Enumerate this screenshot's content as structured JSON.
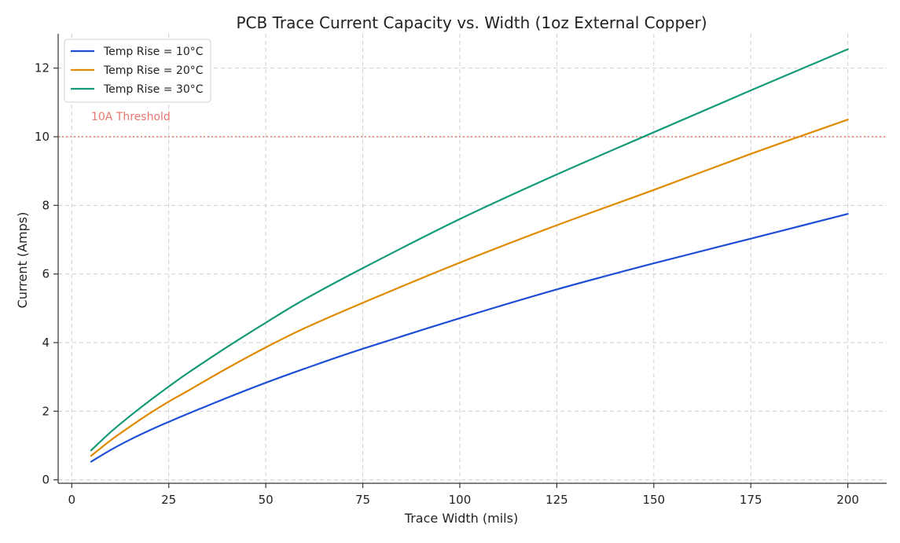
{
  "chart_data": {
    "type": "line",
    "title": "PCB Trace Current Capacity vs. Width (1oz External Copper)",
    "xlabel": "Trace Width (mils)",
    "ylabel": "Current (Amps)",
    "xlim": [
      -3.5,
      210
    ],
    "ylim": [
      -0.1,
      13.0
    ],
    "xticks": [
      0,
      25,
      50,
      75,
      100,
      125,
      150,
      175,
      200
    ],
    "yticks": [
      0,
      2,
      4,
      6,
      8,
      10,
      12
    ],
    "grid": true,
    "legend_position": "top-left",
    "x": [
      5,
      10,
      15,
      20,
      25,
      30,
      40,
      50,
      60,
      75,
      100,
      125,
      150,
      175,
      200
    ],
    "series": [
      {
        "name": "Temp Rise = 10°C",
        "color": "#1f4fd6",
        "values": [
          0.53,
          0.87,
          1.17,
          1.44,
          1.69,
          1.93,
          2.39,
          2.83,
          3.24,
          3.82,
          4.71,
          5.55,
          6.31,
          7.03,
          7.75
        ]
      },
      {
        "name": "Temp Rise = 20°C",
        "color": "#e08a00",
        "values": [
          0.7,
          1.15,
          1.55,
          1.93,
          2.28,
          2.6,
          3.25,
          3.86,
          4.42,
          5.16,
          6.33,
          7.42,
          8.45,
          9.5,
          10.5
        ]
      },
      {
        "name": "Temp Rise = 30°C",
        "color": "#159a78",
        "values": [
          0.86,
          1.39,
          1.86,
          2.3,
          2.72,
          3.12,
          3.87,
          4.58,
          5.26,
          6.17,
          7.6,
          8.9,
          10.13,
          11.35,
          12.55
        ]
      }
    ],
    "threshold": {
      "value": 10,
      "label": "10A Threshold",
      "color": "#e8766c"
    }
  }
}
